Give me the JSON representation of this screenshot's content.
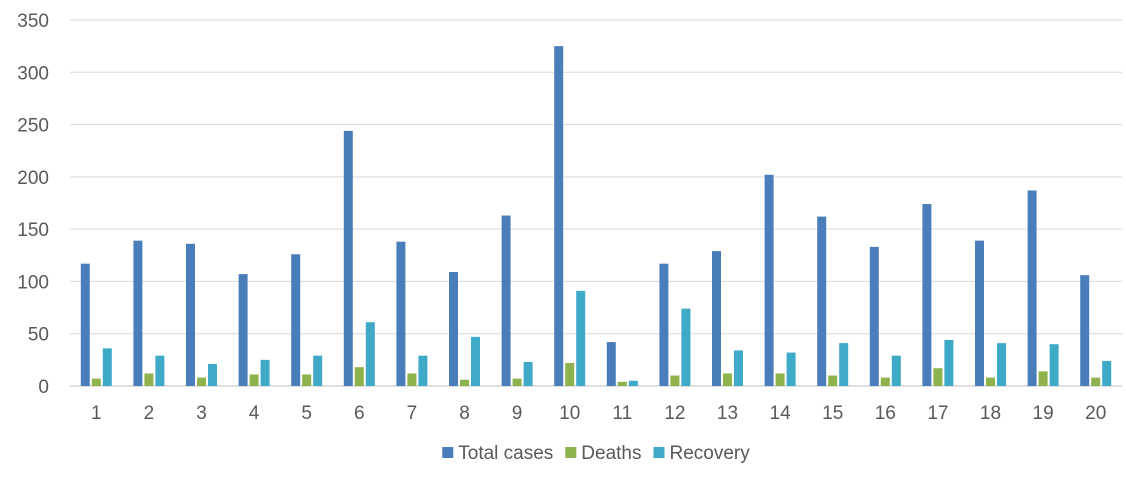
{
  "chart_data": {
    "type": "bar",
    "title": "",
    "xlabel": "",
    "ylabel": "",
    "ylim": [
      0,
      350
    ],
    "yticks": [
      0,
      50,
      100,
      150,
      200,
      250,
      300,
      350
    ],
    "grid": true,
    "legend_position": "bottom",
    "categories": [
      "1",
      "2",
      "3",
      "4",
      "5",
      "6",
      "7",
      "8",
      "9",
      "10",
      "11",
      "12",
      "13",
      "14",
      "15",
      "16",
      "17",
      "18",
      "19",
      "20"
    ],
    "series": [
      {
        "name": "Total cases",
        "color": "#4a7ebb",
        "values": [
          117,
          139,
          136,
          107,
          126,
          244,
          138,
          109,
          163,
          325,
          42,
          117,
          129,
          202,
          162,
          133,
          174,
          139,
          187,
          106
        ]
      },
      {
        "name": "Deaths",
        "color": "#8eb24c",
        "values": [
          7,
          12,
          8,
          11,
          11,
          18,
          12,
          6,
          7,
          22,
          4,
          10,
          12,
          12,
          10,
          8,
          17,
          8,
          14,
          8
        ]
      },
      {
        "name": "Recovery",
        "color": "#3fa9c8",
        "values": [
          36,
          29,
          21,
          25,
          29,
          61,
          29,
          47,
          23,
          91,
          5,
          74,
          34,
          32,
          41,
          29,
          44,
          41,
          40,
          24
        ]
      }
    ]
  }
}
